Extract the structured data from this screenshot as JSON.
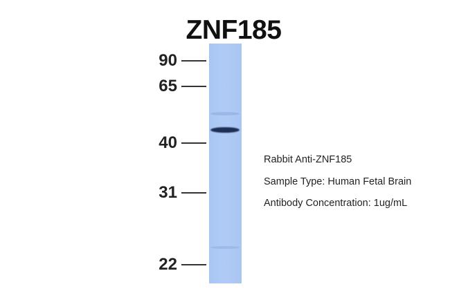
{
  "title": "ZNF185",
  "markers": [
    "90",
    "65",
    "40",
    "31",
    "22"
  ],
  "info": [
    "Rabbit Anti-ZNF185",
    "Sample Type: Human Fetal Brain",
    "Antibody Concentration: 1ug/mL"
  ],
  "colors": {
    "lane": "#b0cbf6",
    "band": "#1d2f55"
  }
}
